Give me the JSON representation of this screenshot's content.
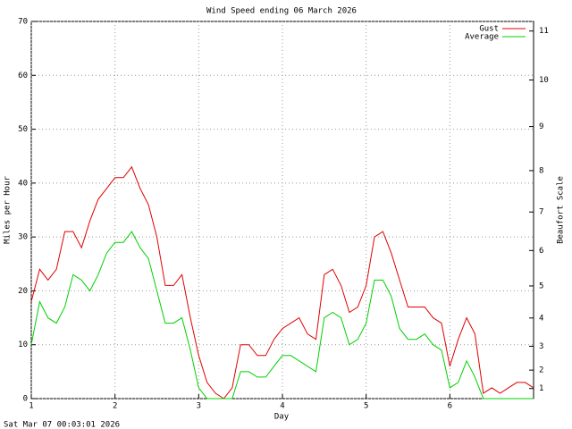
{
  "chart_data": {
    "type": "line",
    "title": "Wind Speed ending 06 March 2026",
    "x_label": "Day",
    "y_label": "Miles per Hour",
    "y2_label": "Beaufort Scale",
    "footer": "Sat Mar 07 00:03:01 2026",
    "x": [
      1.0,
      1.1,
      1.2,
      1.3,
      1.4,
      1.5,
      1.6,
      1.7,
      1.8,
      1.9,
      2.0,
      2.1,
      2.2,
      2.3,
      2.4,
      2.5,
      2.6,
      2.7,
      2.8,
      2.9,
      3.0,
      3.1,
      3.2,
      3.3,
      3.4,
      3.5,
      3.6,
      3.7,
      3.8,
      3.9,
      4.0,
      4.1,
      4.2,
      4.3,
      4.4,
      4.5,
      4.6,
      4.7,
      4.8,
      4.9,
      5.0,
      5.1,
      5.2,
      5.3,
      5.4,
      5.5,
      5.6,
      5.7,
      5.8,
      5.9,
      6.0,
      6.1,
      6.2,
      6.3,
      6.4,
      6.5,
      6.6,
      6.7,
      6.8,
      6.9,
      7.0
    ],
    "series": [
      {
        "name": "Gust",
        "color": "#e00000",
        "values": [
          18,
          24,
          22,
          24,
          31,
          31,
          28,
          33,
          37,
          39,
          41,
          41,
          43,
          39,
          36,
          30,
          21,
          21,
          23,
          15,
          8,
          3,
          1,
          0,
          2,
          10,
          10,
          8,
          8,
          11,
          13,
          14,
          15,
          12,
          11,
          23,
          24,
          21,
          16,
          17,
          21,
          30,
          31,
          27,
          22,
          17,
          17,
          17,
          15,
          14,
          6,
          11,
          15,
          12,
          1,
          2,
          1,
          2,
          3,
          3,
          2
        ]
      },
      {
        "name": "Average",
        "color": "#00d000",
        "values": [
          10,
          18,
          15,
          14,
          17,
          23,
          22,
          20,
          23,
          27,
          29,
          29,
          31,
          28,
          26,
          20,
          14,
          14,
          15,
          9,
          2,
          0,
          0,
          0,
          0,
          5,
          5,
          4,
          4,
          6,
          8,
          8,
          7,
          6,
          5,
          15,
          16,
          15,
          10,
          11,
          14,
          22,
          22,
          19,
          13,
          11,
          11,
          12,
          10,
          9,
          2,
          3,
          7,
          4,
          0,
          0,
          0,
          0,
          0,
          0,
          0
        ]
      }
    ],
    "xlim": [
      1,
      7
    ],
    "xticks": [
      1,
      2,
      3,
      4,
      5,
      6
    ],
    "ylim": [
      0,
      70
    ],
    "yticks": [
      0,
      10,
      20,
      30,
      40,
      50,
      60,
      70
    ],
    "y2lim": [
      0,
      11.2
    ],
    "y2ticks": [
      1,
      2,
      3,
      4,
      5,
      6,
      7,
      8,
      9,
      10,
      11
    ],
    "y2_scale": "beaufort",
    "grid": true,
    "legend": "top-right"
  }
}
